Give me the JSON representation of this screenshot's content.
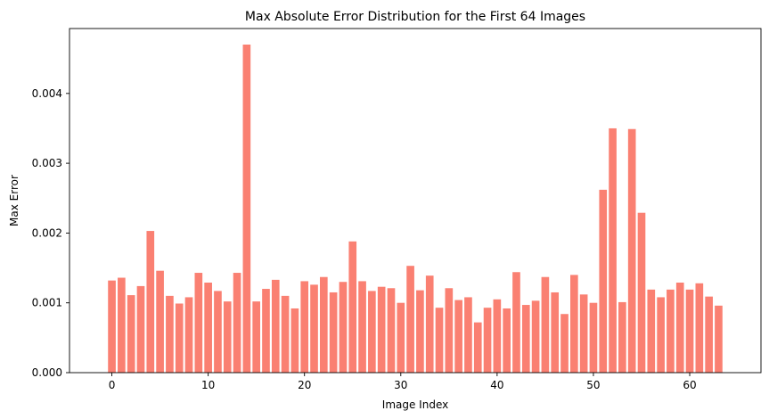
{
  "chart_data": {
    "type": "bar",
    "title": "Max Absolute Error Distribution for the First 64 Images",
    "xlabel": "Image Index",
    "ylabel": "Max Error",
    "x": [
      0,
      1,
      2,
      3,
      4,
      5,
      6,
      7,
      8,
      9,
      10,
      11,
      12,
      13,
      14,
      15,
      16,
      17,
      18,
      19,
      20,
      21,
      22,
      23,
      24,
      25,
      26,
      27,
      28,
      29,
      30,
      31,
      32,
      33,
      34,
      35,
      36,
      37,
      38,
      39,
      40,
      41,
      42,
      43,
      44,
      45,
      46,
      47,
      48,
      49,
      50,
      51,
      52,
      53,
      54,
      55,
      56,
      57,
      58,
      59,
      60,
      61,
      62,
      63
    ],
    "values": [
      0.00132,
      0.00136,
      0.00111,
      0.00124,
      0.00203,
      0.00146,
      0.0011,
      0.00099,
      0.00108,
      0.00143,
      0.00129,
      0.00117,
      0.00102,
      0.00143,
      0.0047,
      0.00102,
      0.0012,
      0.00133,
      0.0011,
      0.00092,
      0.00131,
      0.00126,
      0.00137,
      0.00115,
      0.0013,
      0.00188,
      0.00131,
      0.00117,
      0.00123,
      0.00121,
      0.001,
      0.00153,
      0.00118,
      0.00139,
      0.00093,
      0.00121,
      0.00104,
      0.00108,
      0.00072,
      0.00093,
      0.00105,
      0.00092,
      0.00144,
      0.00097,
      0.00103,
      0.00137,
      0.00115,
      0.00084,
      0.0014,
      0.00112,
      0.001,
      0.00262,
      0.0035,
      0.00101,
      0.00349,
      0.00229,
      0.00119,
      0.00108,
      0.00119,
      0.00129,
      0.00119,
      0.00128,
      0.00109,
      0.00096
    ],
    "xlim": [
      -4.4,
      67.4
    ],
    "ylim": [
      0,
      0.00493
    ],
    "xticks": [
      0,
      10,
      20,
      30,
      40,
      50,
      60
    ],
    "xtick_labels": [
      "0",
      "10",
      "20",
      "30",
      "40",
      "50",
      "60"
    ],
    "yticks": [
      0,
      0.001,
      0.002,
      0.003,
      0.004
    ],
    "ytick_labels": [
      "0.000",
      "0.001",
      "0.002",
      "0.003",
      "0.004"
    ],
    "bar_color": "#fa8072",
    "grid": false,
    "legend": "none"
  }
}
